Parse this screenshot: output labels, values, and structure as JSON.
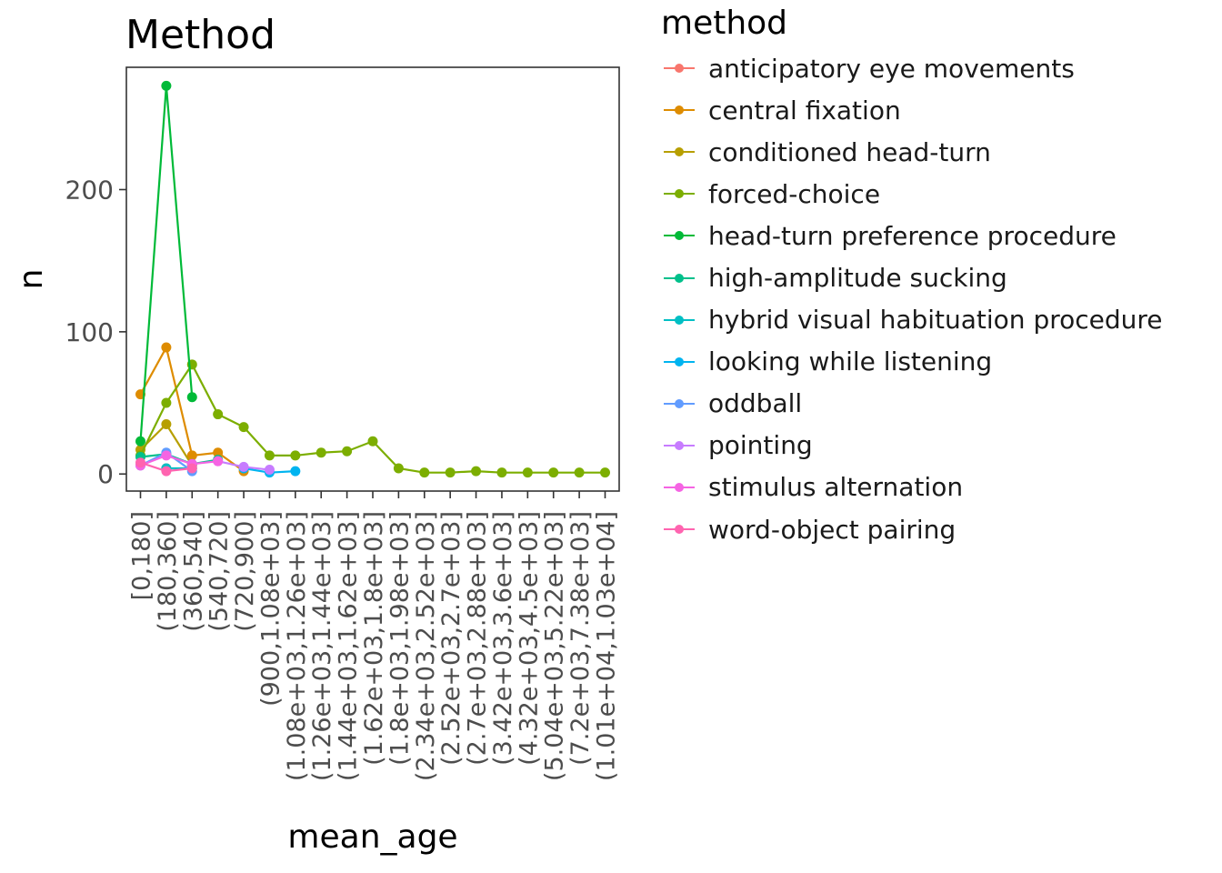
{
  "chart_data": {
    "type": "line",
    "title": "Method",
    "xlabel": "mean_age",
    "ylabel": "n",
    "ylim": [
      -12,
      286
    ],
    "yticks": [
      0,
      100,
      200
    ],
    "grid": false,
    "legend_title": "method",
    "legend_position": "right",
    "categories": [
      "[0,180]",
      "(180,360]",
      "(360,540]",
      "(540,720]",
      "(720,900]",
      "(900,1.08e+03]",
      "(1.08e+03,1.26e+03]",
      "(1.26e+03,1.44e+03]",
      "(1.44e+03,1.62e+03]",
      "(1.62e+03,1.8e+03]",
      "(1.8e+03,1.98e+03]",
      "(2.34e+03,2.52e+03]",
      "(2.52e+03,2.7e+03]",
      "(2.7e+03,2.88e+03]",
      "(3.42e+03,3.6e+03]",
      "(4.32e+03,4.5e+03]",
      "(5.04e+03,5.22e+03]",
      "(7.2e+03,7.38e+03]",
      "(1.01e+04,1.03e+04]"
    ],
    "series": [
      {
        "name": "anticipatory eye movements",
        "color": "#F8766D",
        "values": [
          null,
          4,
          null,
          null,
          null,
          null,
          null,
          null,
          null,
          null,
          null,
          null,
          null,
          null,
          null,
          null,
          null,
          null,
          null
        ]
      },
      {
        "name": "central fixation",
        "color": "#DE8C00",
        "values": [
          56,
          89,
          13,
          15,
          2,
          null,
          null,
          null,
          null,
          null,
          null,
          null,
          null,
          null,
          null,
          null,
          null,
          null,
          null
        ]
      },
      {
        "name": "conditioned head-turn",
        "color": "#B79F00",
        "values": [
          17,
          35,
          6,
          null,
          null,
          null,
          null,
          null,
          null,
          null,
          null,
          null,
          null,
          null,
          null,
          null,
          null,
          null,
          null
        ]
      },
      {
        "name": "forced-choice",
        "color": "#7CAE00",
        "values": [
          13,
          50,
          77,
          42,
          33,
          13,
          13,
          15,
          16,
          23,
          4,
          1,
          1,
          2,
          1,
          1,
          1,
          1,
          1
        ]
      },
      {
        "name": "head-turn preference procedure",
        "color": "#00BA38",
        "values": [
          23,
          273,
          54,
          null,
          null,
          null,
          null,
          null,
          null,
          null,
          null,
          null,
          null,
          null,
          null,
          null,
          null,
          null,
          null
        ]
      },
      {
        "name": "high-amplitude sucking",
        "color": "#00C08B",
        "values": [
          12,
          14,
          7,
          10,
          null,
          null,
          null,
          null,
          null,
          null,
          null,
          null,
          null,
          null,
          null,
          null,
          null,
          null,
          null
        ]
      },
      {
        "name": "hybrid visual habituation procedure",
        "color": "#00BFC4",
        "values": [
          null,
          4,
          4,
          null,
          null,
          null,
          null,
          null,
          null,
          null,
          null,
          null,
          null,
          null,
          null,
          null,
          null,
          null,
          null
        ]
      },
      {
        "name": "looking while listening",
        "color": "#00B4F0",
        "values": [
          null,
          null,
          null,
          null,
          4,
          1,
          2,
          null,
          null,
          null,
          null,
          null,
          null,
          null,
          null,
          null,
          null,
          null,
          null
        ]
      },
      {
        "name": "oddball",
        "color": "#619CFF",
        "values": [
          6,
          15,
          2,
          null,
          null,
          null,
          null,
          null,
          null,
          null,
          null,
          null,
          null,
          null,
          null,
          null,
          null,
          null,
          null
        ]
      },
      {
        "name": "pointing",
        "color": "#C77CFF",
        "values": [
          null,
          null,
          null,
          9,
          5,
          3,
          null,
          null,
          null,
          null,
          null,
          null,
          null,
          null,
          null,
          null,
          null,
          null,
          null
        ]
      },
      {
        "name": "stimulus alternation",
        "color": "#F564E3",
        "values": [
          6,
          13,
          7,
          9,
          null,
          null,
          null,
          null,
          null,
          null,
          null,
          null,
          null,
          null,
          null,
          null,
          null,
          null,
          null
        ]
      },
      {
        "name": "word-object pairing",
        "color": "#FF64B0",
        "values": [
          8,
          2,
          4,
          null,
          null,
          null,
          null,
          null,
          null,
          null,
          null,
          null,
          null,
          null,
          null,
          null,
          null,
          null,
          null
        ]
      }
    ]
  }
}
